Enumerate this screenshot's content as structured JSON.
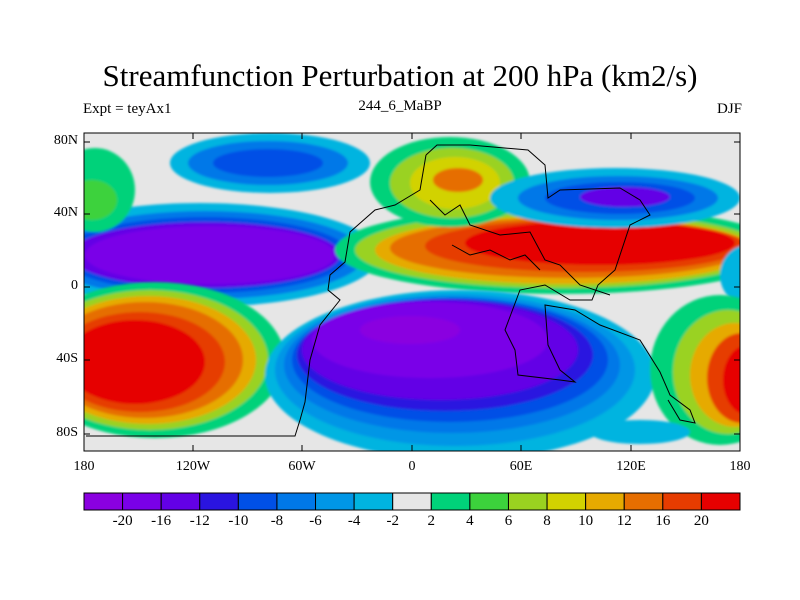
{
  "figure": {
    "title": "Streamfunction Perturbation at 200 hPa (km2/s)",
    "left_subtitle": "Expt = teyAx1",
    "center_subtitle": "244_6_MaBP",
    "right_subtitle": "DJF"
  },
  "axes": {
    "x_ticks": [
      "180",
      "120W",
      "60W",
      "0",
      "60E",
      "120E",
      "180"
    ],
    "y_ticks": [
      "80N",
      "40N",
      "0",
      "40S",
      "80S"
    ]
  },
  "colorbar": {
    "labels": [
      "-20",
      "-16",
      "-12",
      "-10",
      "-8",
      "-6",
      "-4",
      "-2",
      "2",
      "4",
      "6",
      "8",
      "10",
      "12",
      "16",
      "20"
    ],
    "colors": [
      "#8a00e0",
      "#7a00e8",
      "#6300e6",
      "#2a14e0",
      "#0050e6",
      "#0078e8",
      "#0096e6",
      "#00b4e0",
      "#e6e6e6",
      "#00d27a",
      "#3cd23c",
      "#9ad220",
      "#d2d200",
      "#e6aa00",
      "#e66e00",
      "#e63c00",
      "#e60000"
    ]
  },
  "colors": {
    "neutral": "#e6e6e6",
    "border": "#000000"
  }
}
